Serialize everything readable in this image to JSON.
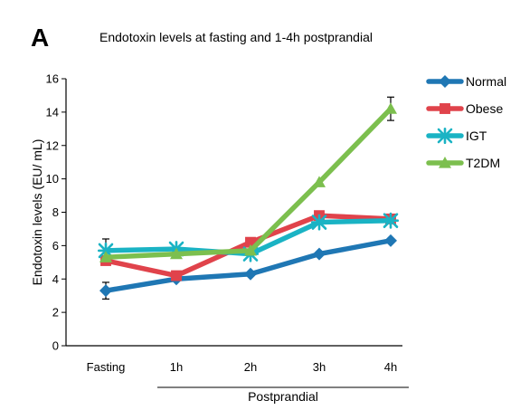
{
  "panel_label": "A",
  "chart_data": {
    "type": "line",
    "title": "Endotoxin levels at fasting and 1-4h postprandial",
    "ylabel": "Endotoxin levels (EU/ mL)",
    "xlabel": "Postprandial",
    "categories": [
      "Fasting",
      "1h",
      "2h",
      "3h",
      "4h"
    ],
    "ylim": [
      0,
      16
    ],
    "yticks": [
      0,
      2,
      4,
      6,
      8,
      10,
      12,
      14,
      16
    ],
    "grid": false,
    "legend_position": "top-right",
    "series": [
      {
        "name": "Normal",
        "color": "#1f77b4",
        "marker": "diamond",
        "values": [
          3.3,
          4.0,
          4.3,
          5.5,
          6.3
        ]
      },
      {
        "name": "Obese",
        "color": "#e0434b",
        "marker": "square",
        "values": [
          5.1,
          4.2,
          6.2,
          7.8,
          7.6
        ]
      },
      {
        "name": "IGT",
        "color": "#1ab3c4",
        "marker": "star",
        "values": [
          5.7,
          5.8,
          5.5,
          7.4,
          7.5
        ]
      },
      {
        "name": "T2DM",
        "color": "#7cbf4e",
        "marker": "triangle",
        "values": [
          5.3,
          5.5,
          5.7,
          9.8,
          14.2
        ]
      }
    ],
    "error_bars": [
      {
        "series": "Normal",
        "category": "Fasting",
        "low": 2.8,
        "high": 3.8
      },
      {
        "series": "IGT",
        "category": "Fasting",
        "low": 5.2,
        "high": 6.4
      },
      {
        "series": "T2DM",
        "category": "4h",
        "low": 13.5,
        "high": 14.9
      }
    ]
  }
}
